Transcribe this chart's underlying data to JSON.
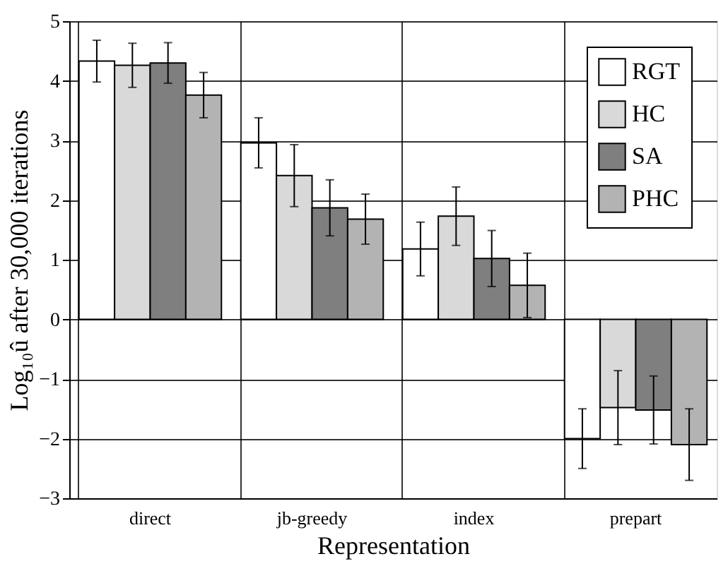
{
  "chart_data": {
    "type": "bar",
    "xlabel": "Representation",
    "ylabel": "Log₁₀û after 30,000 iterations",
    "categories": [
      "direct",
      "jb-greedy",
      "index",
      "prepart"
    ],
    "series": [
      {
        "name": "RGT",
        "color": "#ffffff",
        "values": [
          4.33,
          2.96,
          1.18,
          -2.0
        ],
        "errors": [
          0.35,
          0.42,
          0.45,
          0.5
        ]
      },
      {
        "name": "HC",
        "color": "#d9d9d9",
        "values": [
          4.26,
          2.41,
          1.73,
          -1.48
        ],
        "errors": [
          0.37,
          0.52,
          0.49,
          0.62
        ]
      },
      {
        "name": "SA",
        "color": "#7f7f7f",
        "values": [
          4.3,
          1.87,
          1.02,
          -1.52
        ],
        "errors": [
          0.34,
          0.47,
          0.47,
          0.57
        ]
      },
      {
        "name": "PHC",
        "color": "#b3b3b3",
        "values": [
          3.76,
          1.68,
          0.57,
          -2.1
        ],
        "errors": [
          0.38,
          0.42,
          0.54,
          0.6
        ]
      }
    ],
    "ylim": [
      -3,
      5
    ],
    "yticks": [
      -3,
      -2,
      -1,
      0,
      1,
      2,
      3,
      4,
      5
    ],
    "grid": true,
    "legend": "top right"
  }
}
